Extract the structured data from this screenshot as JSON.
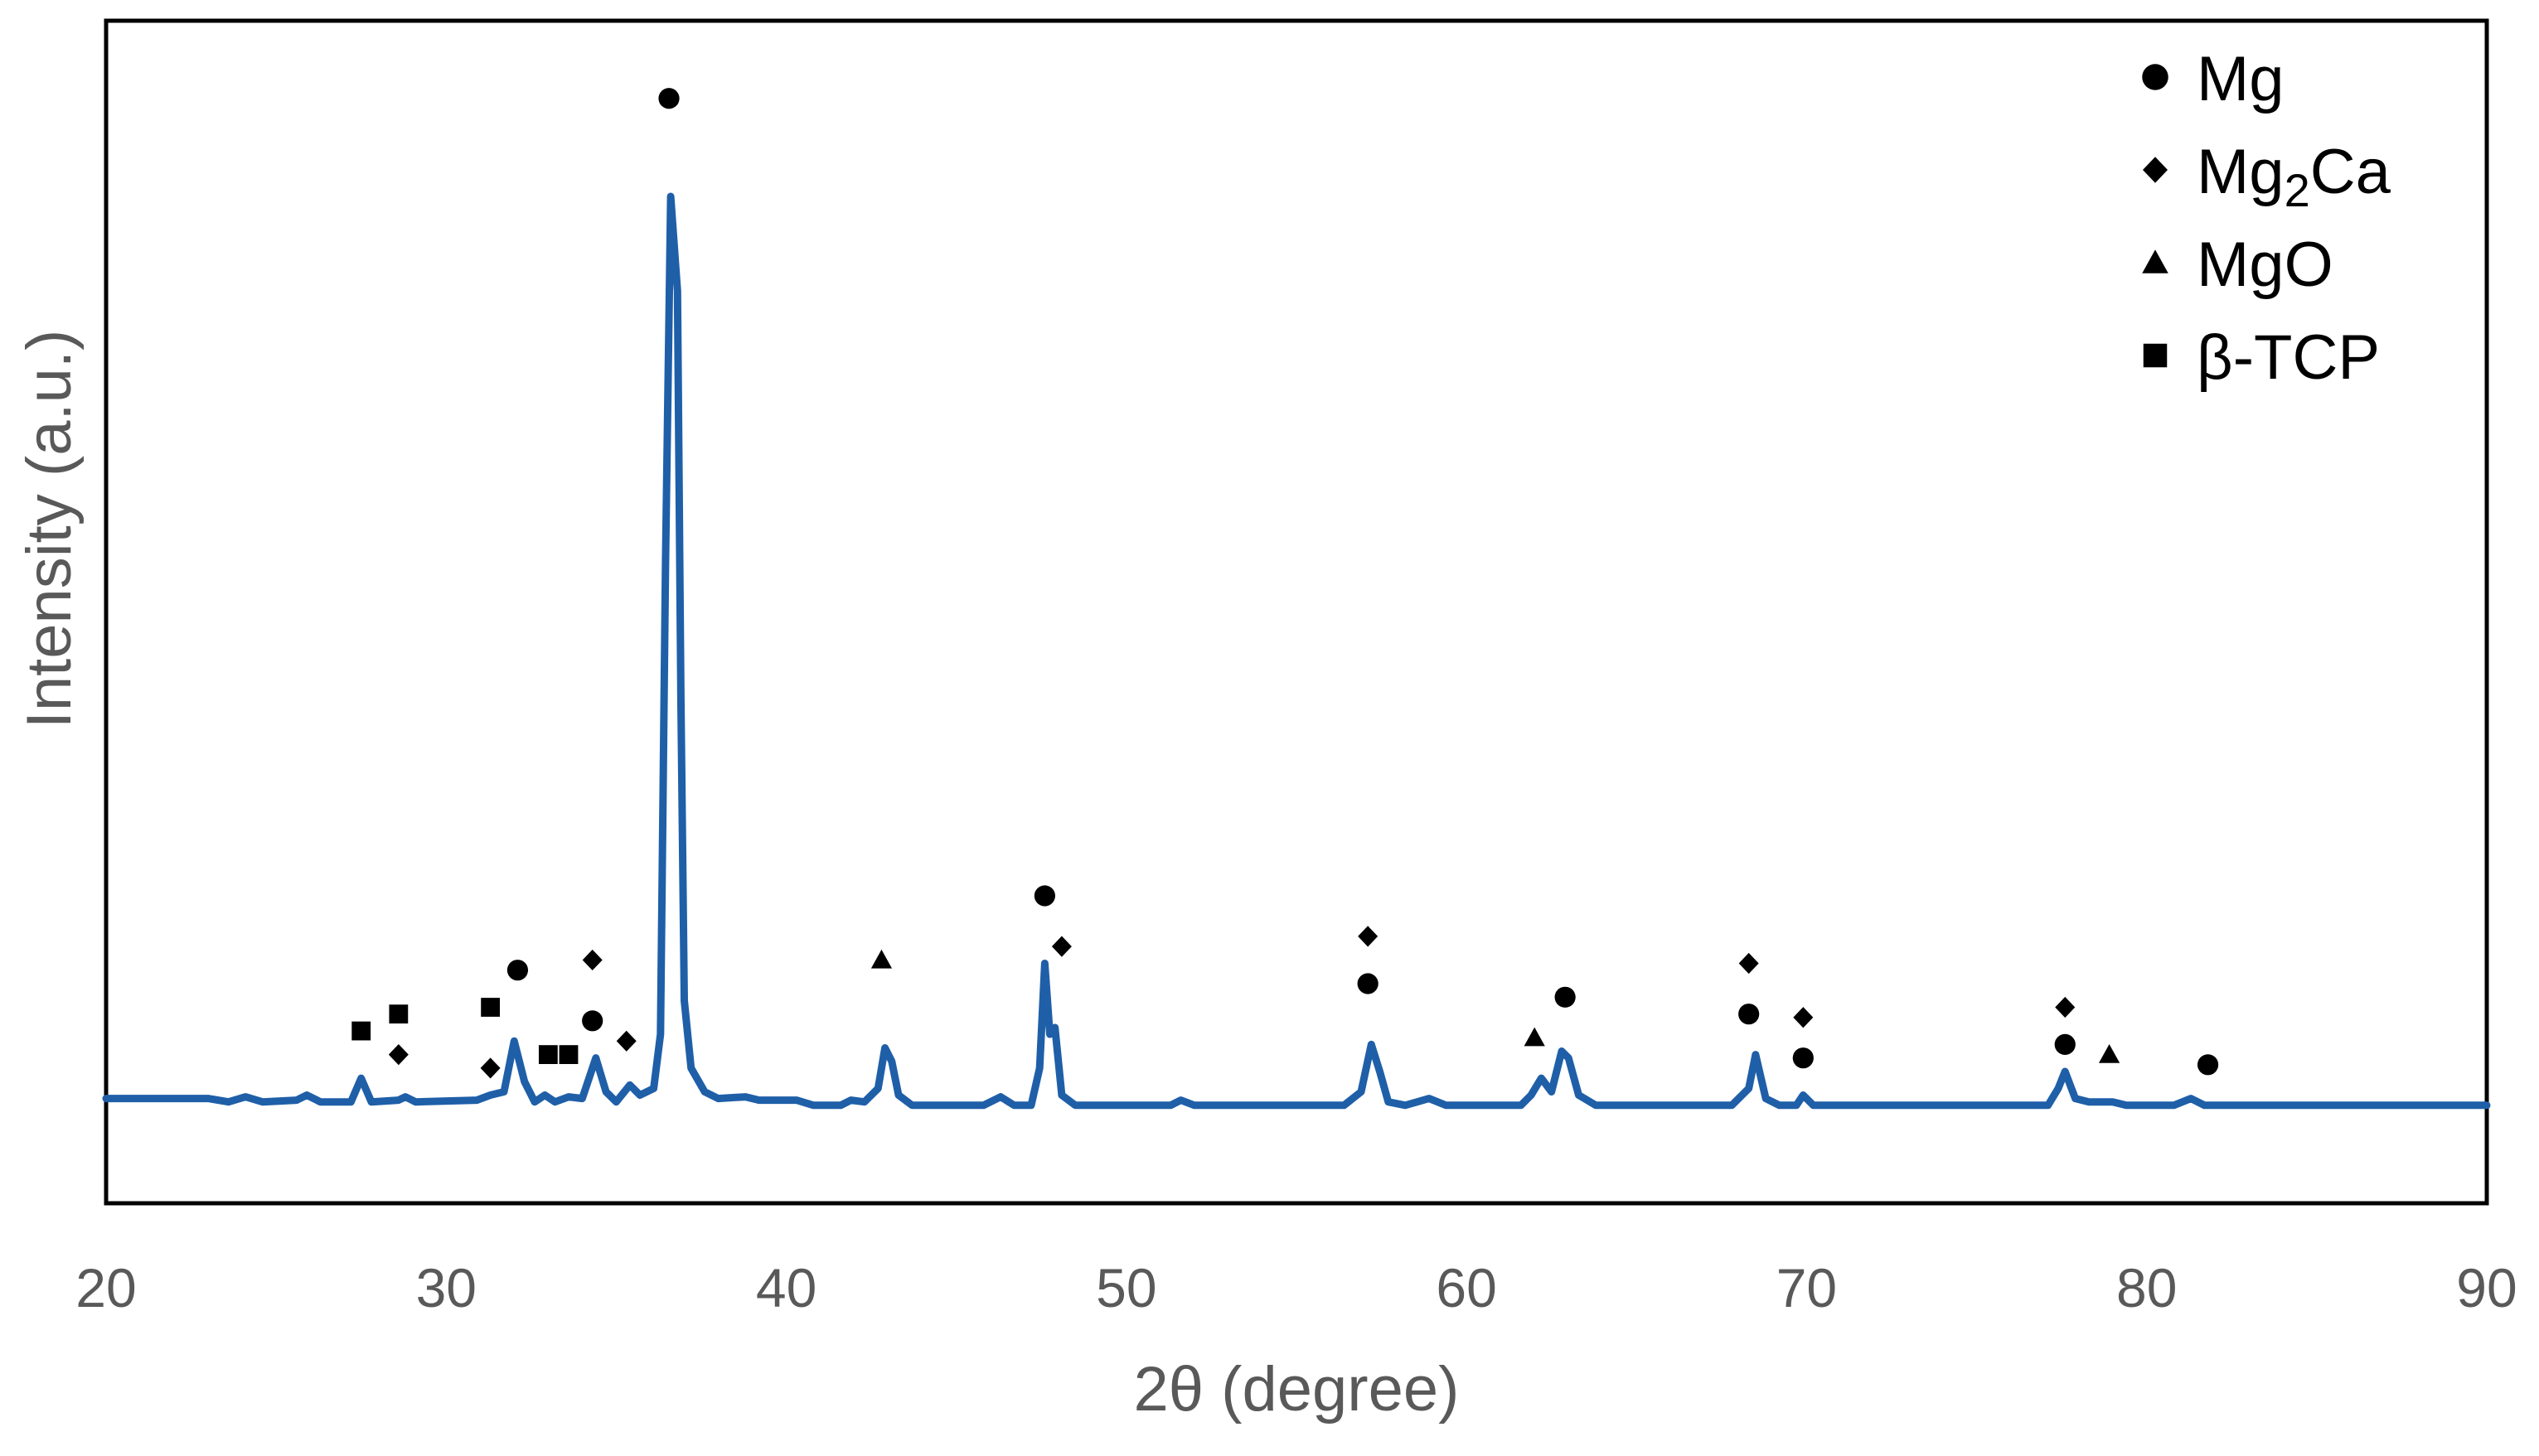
{
  "chart_data": {
    "type": "line",
    "title": "",
    "xlabel": "2θ (degree)",
    "ylabel": "Intensity (a.u.)",
    "xlim": [
      20,
      90
    ],
    "ylim": [
      -3,
      32
    ],
    "x_ticks": [
      "20",
      "30",
      "40",
      "50",
      "60",
      "70",
      "80",
      "90"
    ],
    "y_ticks_shown": false,
    "grid": false,
    "legend_position": "top-right",
    "line_color": "#1f5fa8",
    "series": [
      {
        "values": [
          [
            20,
            0.1
          ],
          [
            23,
            0.1
          ],
          [
            23.6,
            0.0
          ],
          [
            24.1,
            0.15
          ],
          [
            24.6,
            0.0
          ],
          [
            25.6,
            0.05
          ],
          [
            25.9,
            0.2
          ],
          [
            26.3,
            0.0
          ],
          [
            27.2,
            0.0
          ],
          [
            27.5,
            0.7
          ],
          [
            27.8,
            0.0
          ],
          [
            28.6,
            0.05
          ],
          [
            28.8,
            0.15
          ],
          [
            29.1,
            0.0
          ],
          [
            30.9,
            0.05
          ],
          [
            31.3,
            0.2
          ],
          [
            31.7,
            0.3
          ],
          [
            32.0,
            1.8
          ],
          [
            32.3,
            0.6
          ],
          [
            32.6,
            0.0
          ],
          [
            32.9,
            0.2
          ],
          [
            33.2,
            0.0
          ],
          [
            33.6,
            0.15
          ],
          [
            34.0,
            0.1
          ],
          [
            34.4,
            1.3
          ],
          [
            34.7,
            0.3
          ],
          [
            35.0,
            0.0
          ],
          [
            35.4,
            0.5
          ],
          [
            35.7,
            0.2
          ],
          [
            36.1,
            0.4
          ],
          [
            36.3,
            2.0
          ],
          [
            36.45,
            16.0
          ],
          [
            36.6,
            26.8
          ],
          [
            36.8,
            24.0
          ],
          [
            36.9,
            12.0
          ],
          [
            37.0,
            3.0
          ],
          [
            37.2,
            1.0
          ],
          [
            37.6,
            0.3
          ],
          [
            38.0,
            0.1
          ],
          [
            38.8,
            0.15
          ],
          [
            39.2,
            0.05
          ],
          [
            40.3,
            0.05
          ],
          [
            40.8,
            -0.1
          ],
          [
            41.6,
            -0.1
          ],
          [
            41.9,
            0.05
          ],
          [
            42.3,
            0.0
          ],
          [
            42.7,
            0.4
          ],
          [
            42.9,
            1.6
          ],
          [
            43.1,
            1.2
          ],
          [
            43.3,
            0.2
          ],
          [
            43.7,
            -0.1
          ],
          [
            45.8,
            -0.1
          ],
          [
            46.3,
            0.15
          ],
          [
            46.7,
            -0.1
          ],
          [
            47.2,
            -0.1
          ],
          [
            47.45,
            1.0
          ],
          [
            47.6,
            4.1
          ],
          [
            47.75,
            2.0
          ],
          [
            47.9,
            2.2
          ],
          [
            48.1,
            0.2
          ],
          [
            48.5,
            -0.1
          ],
          [
            51.3,
            -0.1
          ],
          [
            51.6,
            0.05
          ],
          [
            52.0,
            -0.1
          ],
          [
            56.4,
            -0.1
          ],
          [
            56.9,
            0.3
          ],
          [
            57.2,
            1.7
          ],
          [
            57.45,
            0.9
          ],
          [
            57.7,
            0.0
          ],
          [
            58.2,
            -0.1
          ],
          [
            58.9,
            0.1
          ],
          [
            59.4,
            -0.1
          ],
          [
            61.6,
            -0.1
          ],
          [
            61.9,
            0.2
          ],
          [
            62.2,
            0.7
          ],
          [
            62.5,
            0.3
          ],
          [
            62.8,
            1.5
          ],
          [
            63.0,
            1.3
          ],
          [
            63.3,
            0.2
          ],
          [
            63.8,
            -0.1
          ],
          [
            67.8,
            -0.1
          ],
          [
            68.3,
            0.4
          ],
          [
            68.5,
            1.4
          ],
          [
            68.8,
            0.1
          ],
          [
            69.2,
            -0.1
          ],
          [
            69.7,
            -0.1
          ],
          [
            69.9,
            0.2
          ],
          [
            70.2,
            -0.1
          ],
          [
            77.1,
            -0.1
          ],
          [
            77.4,
            0.4
          ],
          [
            77.6,
            0.9
          ],
          [
            77.9,
            0.1
          ],
          [
            78.3,
            0.0
          ],
          [
            79.0,
            0.0
          ],
          [
            79.4,
            -0.1
          ],
          [
            80.8,
            -0.1
          ],
          [
            81.3,
            0.1
          ],
          [
            81.7,
            -0.1
          ],
          [
            90,
            -0.1
          ]
        ]
      }
    ],
    "annotations": [
      {
        "phase": "Mg",
        "x": 36.55,
        "y": 29.7
      },
      {
        "phase": "β-TCP",
        "x": 27.5,
        "y": 2.1
      },
      {
        "phase": "β-TCP",
        "x": 28.6,
        "y": 2.6
      },
      {
        "phase": "Mg2Ca",
        "x": 28.6,
        "y": 1.4
      },
      {
        "phase": "β-TCP",
        "x": 31.3,
        "y": 2.8
      },
      {
        "phase": "Mg2Ca",
        "x": 31.3,
        "y": 1.0
      },
      {
        "phase": "Mg",
        "x": 32.1,
        "y": 3.9
      },
      {
        "phase": "β-TCP",
        "x": 33.0,
        "y": 1.4
      },
      {
        "phase": "β-TCP",
        "x": 33.6,
        "y": 1.4
      },
      {
        "phase": "Mg2Ca",
        "x": 34.3,
        "y": 4.2
      },
      {
        "phase": "Mg",
        "x": 34.3,
        "y": 2.4
      },
      {
        "phase": "Mg2Ca",
        "x": 35.3,
        "y": 1.8
      },
      {
        "phase": "MgO",
        "x": 42.8,
        "y": 4.2
      },
      {
        "phase": "Mg",
        "x": 47.6,
        "y": 6.1
      },
      {
        "phase": "Mg2Ca",
        "x": 48.1,
        "y": 4.6
      },
      {
        "phase": "Mg2Ca",
        "x": 57.1,
        "y": 4.9
      },
      {
        "phase": "Mg",
        "x": 57.1,
        "y": 3.5
      },
      {
        "phase": "MgO",
        "x": 62.0,
        "y": 1.9
      },
      {
        "phase": "Mg",
        "x": 62.9,
        "y": 3.1
      },
      {
        "phase": "Mg2Ca",
        "x": 68.3,
        "y": 4.1
      },
      {
        "phase": "Mg",
        "x": 68.3,
        "y": 2.6
      },
      {
        "phase": "Mg2Ca",
        "x": 69.9,
        "y": 2.5
      },
      {
        "phase": "Mg",
        "x": 69.9,
        "y": 1.3
      },
      {
        "phase": "Mg2Ca",
        "x": 77.6,
        "y": 2.8
      },
      {
        "phase": "Mg",
        "x": 77.6,
        "y": 1.7
      },
      {
        "phase": "MgO",
        "x": 78.9,
        "y": 1.4
      },
      {
        "phase": "Mg",
        "x": 81.8,
        "y": 1.1
      }
    ],
    "legend": [
      {
        "key": "Mg",
        "marker": "circle",
        "label": "Mg",
        "sub": ""
      },
      {
        "key": "Mg2Ca",
        "marker": "diamond",
        "label": "Mg",
        "sub": "2",
        "label_after": "Ca"
      },
      {
        "key": "MgO",
        "marker": "triangle",
        "label": "MgO",
        "sub": ""
      },
      {
        "key": "β-TCP",
        "marker": "square",
        "label": "β-TCP",
        "sub": ""
      }
    ]
  }
}
